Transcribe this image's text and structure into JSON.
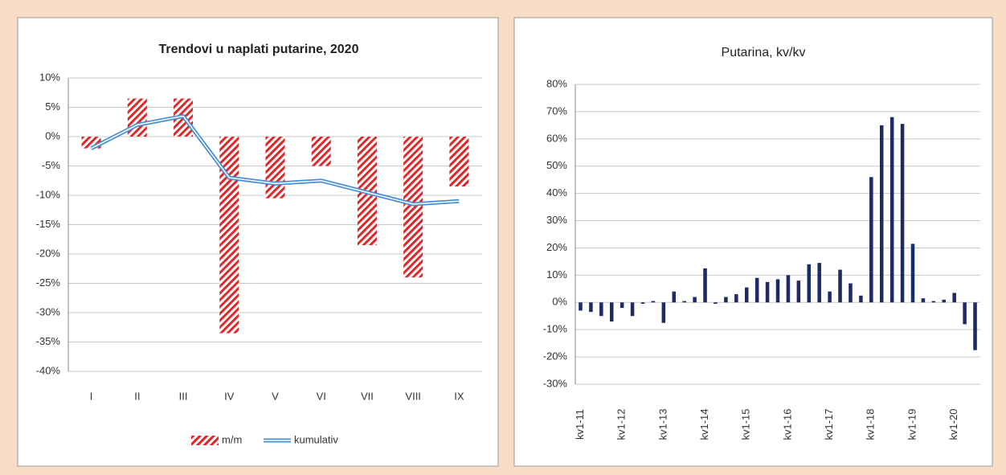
{
  "chart_data": [
    {
      "type": "bar",
      "title": "Trendovi u naplati putarine, 2020",
      "categories": [
        "I",
        "II",
        "III",
        "IV",
        "V",
        "VI",
        "VII",
        "VIII",
        "IX"
      ],
      "series": [
        {
          "name": "m/m",
          "type": "bar",
          "color": "#e02828",
          "values": [
            -2,
            6.5,
            6.5,
            -33.5,
            -10.5,
            -5,
            -18.5,
            -24,
            -8.5
          ]
        },
        {
          "name": "kumulativ",
          "type": "line",
          "color": "#4a8fd6",
          "values": [
            -2,
            2,
            3.5,
            -7,
            -8,
            -7.5,
            -9.5,
            -11.5,
            -11
          ]
        }
      ],
      "ylim": [
        -40,
        10
      ],
      "yticks": [
        {
          "value": -40,
          "label": "-40%"
        },
        {
          "value": -35,
          "label": "-35%"
        },
        {
          "value": -30,
          "label": "-30%"
        },
        {
          "value": -25,
          "label": "-25%"
        },
        {
          "value": -20,
          "label": "-20%"
        },
        {
          "value": -15,
          "label": "-15%"
        },
        {
          "value": -10,
          "label": "-10%"
        },
        {
          "value": -5,
          "label": "-5%"
        },
        {
          "value": 0,
          "label": "0%"
        },
        {
          "value": 5,
          "label": "5%"
        },
        {
          "value": 10,
          "label": "10%"
        }
      ],
      "grid": true,
      "legend": "bottom"
    },
    {
      "type": "bar",
      "title": "Putarina, kv/kv",
      "categories": [
        "kv1-11",
        null,
        null,
        null,
        "kv1-12",
        null,
        null,
        null,
        "kv1-13",
        null,
        null,
        null,
        "kv1-14",
        null,
        null,
        null,
        "kv1-15",
        null,
        null,
        null,
        "kv1-16",
        null,
        null,
        null,
        "kv1-17",
        null,
        null,
        null,
        "kv1-18",
        null,
        null,
        null,
        "kv1-19",
        null,
        null,
        null,
        "kv1-20",
        null,
        null
      ],
      "values": [
        -3,
        -3.5,
        -5,
        -7,
        -2,
        -5,
        -0.5,
        0.5,
        -7.5,
        4,
        0.5,
        2,
        12.5,
        -0.5,
        2,
        3,
        5.5,
        9,
        7.5,
        8.5,
        10,
        8,
        14,
        14.5,
        4,
        12,
        7,
        2.5,
        46,
        65,
        68,
        65.5,
        21.5,
        1.5,
        0.5,
        1,
        3.5,
        -8,
        -17.5
      ],
      "color": "#1c2a66",
      "ylim": [
        -30,
        80
      ],
      "yticks": [
        {
          "value": -30,
          "label": "-30%"
        },
        {
          "value": -20,
          "label": "-20%"
        },
        {
          "value": -10,
          "label": "-10%"
        },
        {
          "value": 0,
          "label": "0%"
        },
        {
          "value": 10,
          "label": "10%"
        },
        {
          "value": 20,
          "label": "20%"
        },
        {
          "value": 30,
          "label": "30%"
        },
        {
          "value": 40,
          "label": "40%"
        },
        {
          "value": 50,
          "label": "50%"
        },
        {
          "value": 60,
          "label": "60%"
        },
        {
          "value": 70,
          "label": "70%"
        },
        {
          "value": 80,
          "label": "80%"
        }
      ],
      "grid": true
    }
  ]
}
